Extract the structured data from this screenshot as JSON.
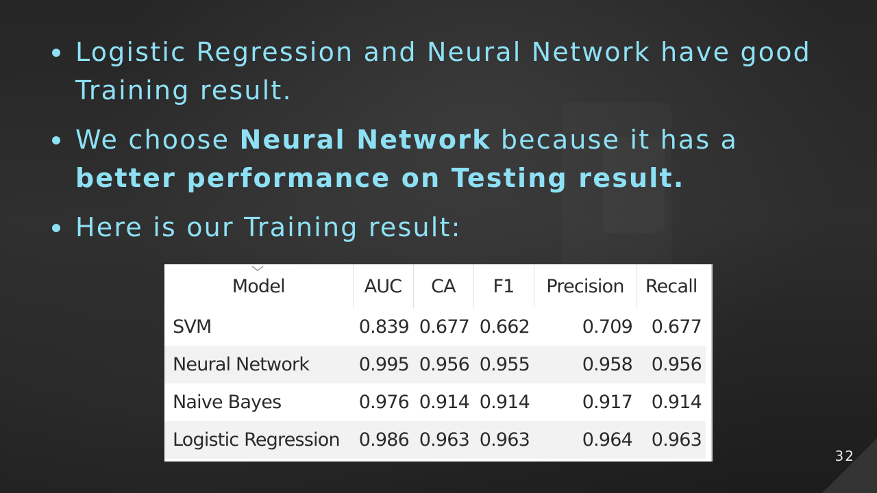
{
  "bullets": [
    {
      "segments": [
        {
          "text": "Logistic Regression and Neural Network have good Training result.",
          "bold": false
        }
      ]
    },
    {
      "segments": [
        {
          "text": "We choose ",
          "bold": false
        },
        {
          "text": "Neural Network",
          "bold": true
        },
        {
          "text": " because it has a ",
          "bold": false
        },
        {
          "text": "better performance on Testing result.",
          "bold": true
        }
      ]
    },
    {
      "segments": [
        {
          "text": "Here is our Training result:",
          "bold": false
        }
      ]
    }
  ],
  "table": {
    "headers": [
      "Model",
      "AUC",
      "CA",
      "F1",
      "Precision",
      "Recall"
    ],
    "rows": [
      [
        "SVM",
        "0.839",
        "0.677",
        "0.662",
        "0.709",
        "0.677"
      ],
      [
        "Neural Network",
        "0.995",
        "0.956",
        "0.955",
        "0.958",
        "0.956"
      ],
      [
        "Naive Bayes",
        "0.976",
        "0.914",
        "0.914",
        "0.917",
        "0.914"
      ],
      [
        "Logistic Regression",
        "0.986",
        "0.963",
        "0.963",
        "0.964",
        "0.963"
      ]
    ]
  },
  "page_number": "32",
  "colors": {
    "text_accent": "#8ee1f5",
    "background": "#252525"
  }
}
